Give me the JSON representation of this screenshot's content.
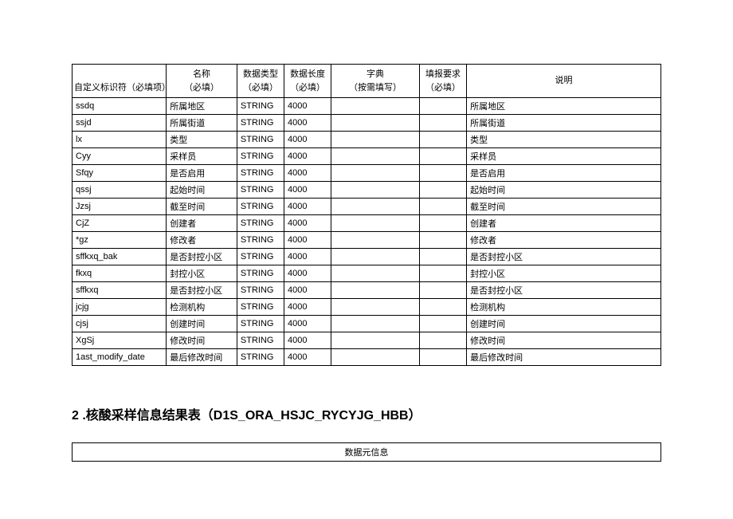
{
  "table1": {
    "headers": {
      "id": "自定义标识符（必填项）",
      "name_top": "名称",
      "name_bottom": "（必填）",
      "type_top": "数据类型",
      "type_bottom": "（必填）",
      "length_top": "数据长度",
      "length_bottom": "（必填）",
      "dict_top": "字典",
      "dict_bottom": "（按需填写）",
      "req_top": "填报要求",
      "req_bottom": "（必填）",
      "desc": "说明"
    },
    "rows": [
      {
        "id": "ssdq",
        "name": "所属地区",
        "type": "STRING",
        "length": "4000",
        "dict": "",
        "req": "",
        "desc": "所属地区"
      },
      {
        "id": "ssjd",
        "name": "所属街道",
        "type": "STRING",
        "length": "4000",
        "dict": "",
        "req": "",
        "desc": "所属街道"
      },
      {
        "id": "lx",
        "name": "类型",
        "type": "STRING",
        "length": "4000",
        "dict": "",
        "req": "",
        "desc": "类型"
      },
      {
        "id": "Cyy",
        "name": "采样员",
        "type": "STRING",
        "length": "4000",
        "dict": "",
        "req": "",
        "desc": "采样员"
      },
      {
        "id": "Sfqy",
        "name": "是否启用",
        "type": "STRING",
        "length": "4000",
        "dict": "",
        "req": "",
        "desc": "是否启用"
      },
      {
        "id": "qssj",
        "name": "起始时间",
        "type": "STRING",
        "length": "4000",
        "dict": "",
        "req": "",
        "desc": "起始时间"
      },
      {
        "id": "Jzsj",
        "name": "截至时间",
        "type": "STRING",
        "length": "4000",
        "dict": "",
        "req": "",
        "desc": "截至时间"
      },
      {
        "id": "CjZ",
        "name": "创建者",
        "type": "STRING",
        "length": "4000",
        "dict": "",
        "req": "",
        "desc": "创建者"
      },
      {
        "id": "*gz",
        "name": "修改者",
        "type": "STRING",
        "length": "4000",
        "dict": "",
        "req": "",
        "desc": "修改者"
      },
      {
        "id": "sffkxq_bak",
        "name": "是否封控小区",
        "type": "STRING",
        "length": "4000",
        "dict": "",
        "req": "",
        "desc": "是否封控小区"
      },
      {
        "id": "fkxq",
        "name": "封控小区",
        "type": "STRING",
        "length": "4000",
        "dict": "",
        "req": "",
        "desc": "封控小区"
      },
      {
        "id": "sffkxq",
        "name": "是否封控小区",
        "type": "STRING",
        "length": "4000",
        "dict": "",
        "req": "",
        "desc": "是否封控小区"
      },
      {
        "id": "jcjg",
        "name": "检测机构",
        "type": "STRING",
        "length": "4000",
        "dict": "",
        "req": "",
        "desc": "检测机构"
      },
      {
        "id": "cjsj",
        "name": "创建时间",
        "type": "STRING",
        "length": "4000",
        "dict": "",
        "req": "",
        "desc": "创建时间"
      },
      {
        "id": "XgSj",
        "name": "修改时间",
        "type": "STRING",
        "length": "4000",
        "dict": "",
        "req": "",
        "desc": "修改时间"
      },
      {
        "id": "1ast_modify_date",
        "name": "最后修改时间",
        "type": "STRING",
        "length": "4000",
        "dict": "",
        "req": "",
        "desc": "最后修改时间"
      }
    ]
  },
  "section2": {
    "title": "2 .核酸采样信息结果表（D1S_ORA_HSJC_RYCYJG_HBB）",
    "subheader": "数据元信息"
  }
}
